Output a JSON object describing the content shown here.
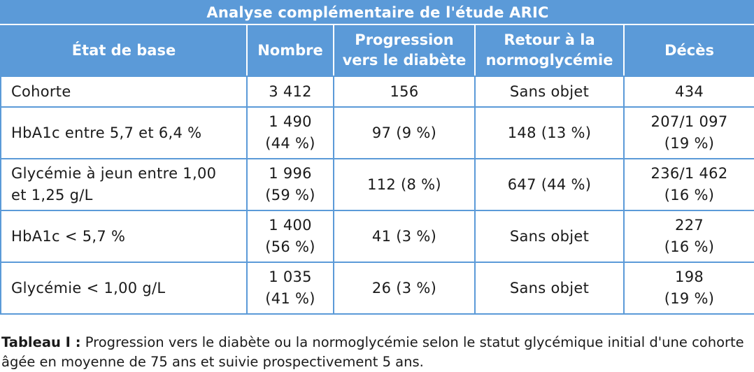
{
  "table": {
    "title": "Analyse complémentaire de l'étude ARIC",
    "headers": [
      {
        "line1": "État de base",
        "line2": ""
      },
      {
        "line1": "Nombre",
        "line2": ""
      },
      {
        "line1": "Progression",
        "line2": "vers le diabète"
      },
      {
        "line1": "Retour à la",
        "line2": "normoglycémie"
      },
      {
        "line1": "Décès",
        "line2": ""
      }
    ],
    "rows": [
      {
        "etat": [
          "Cohorte",
          ""
        ],
        "nombre": [
          "3 412",
          ""
        ],
        "progression": "156",
        "retour": "Sans objet",
        "deces": [
          "434",
          ""
        ]
      },
      {
        "etat": [
          "HbA1c entre 5,7 et 6,4 %",
          ""
        ],
        "nombre": [
          "1 490",
          "(44 %)"
        ],
        "progression": "97 (9 %)",
        "retour": "148 (13 %)",
        "deces": [
          "207/1 097",
          "(19 %)"
        ]
      },
      {
        "etat": [
          "Glycémie à jeun entre 1,00",
          "et 1,25 g/L"
        ],
        "nombre": [
          "1 996",
          "(59 %)"
        ],
        "progression": "112 (8 %)",
        "retour": "647 (44 %)",
        "deces": [
          "236/1 462",
          "(16 %)"
        ]
      },
      {
        "etat": [
          "HbA1c < 5,7 %",
          ""
        ],
        "nombre": [
          "1 400",
          "(56 %)"
        ],
        "progression": "41 (3 %)",
        "retour": "Sans objet",
        "deces": [
          "227",
          "(16 %)"
        ]
      },
      {
        "etat": [
          "Glycémie < 1,00 g/L",
          ""
        ],
        "nombre": [
          "1 035",
          "(41 %)"
        ],
        "progression": "26 (3 %)",
        "retour": "Sans objet",
        "deces": [
          "198",
          "(19 %)"
        ]
      }
    ]
  },
  "caption": {
    "label": "Tableau I :",
    "text": " Progression vers le diabète ou la normoglycémie selon le statut glycémique initial d'une cohorte",
    "line2": "âgée en moyenne de 75 ans et suivie prospectivement 5 ans."
  },
  "colors": {
    "header_bg": "#5b9ad8",
    "border": "#5b9ad8",
    "header_text": "#ffffff"
  }
}
